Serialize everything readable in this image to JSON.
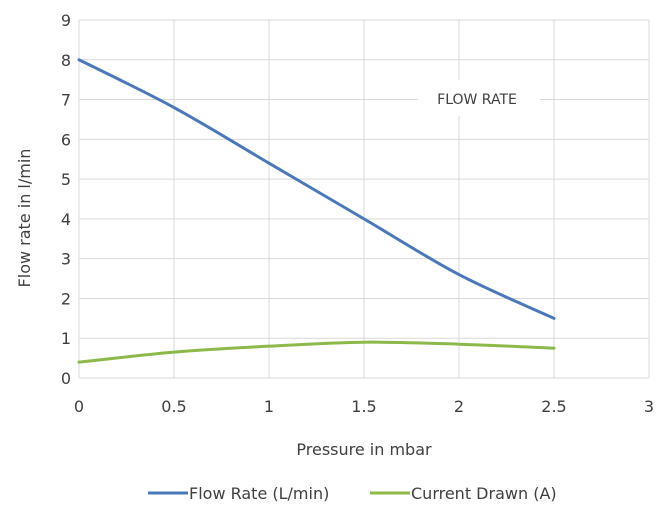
{
  "chart_data": {
    "type": "line",
    "title": "",
    "xlabel": "Pressure in mbar",
    "ylabel": "Flow rate in l/min",
    "xlim": [
      0,
      3
    ],
    "ylim": [
      0,
      9
    ],
    "x_ticks": [
      "0",
      "0.5",
      "1",
      "1.5",
      "2",
      "2.5",
      "3"
    ],
    "y_ticks": [
      "0",
      "1",
      "2",
      "3",
      "4",
      "5",
      "6",
      "7",
      "8",
      "9"
    ],
    "grid": true,
    "legend_position": "bottom",
    "annotation": "FLOW RATE",
    "series": [
      {
        "name": "Flow Rate (L/min)",
        "color": "#4a78b8",
        "x": [
          0,
          0.5,
          1,
          1.5,
          2,
          2.5
        ],
        "y": [
          8.0,
          6.8,
          5.4,
          4.0,
          2.6,
          1.5
        ]
      },
      {
        "name": "Current Drawn (A)",
        "color": "#8db84a",
        "x": [
          0,
          0.5,
          1,
          1.5,
          2,
          2.5
        ],
        "y": [
          0.4,
          0.65,
          0.8,
          0.9,
          0.85,
          0.75
        ]
      }
    ]
  }
}
